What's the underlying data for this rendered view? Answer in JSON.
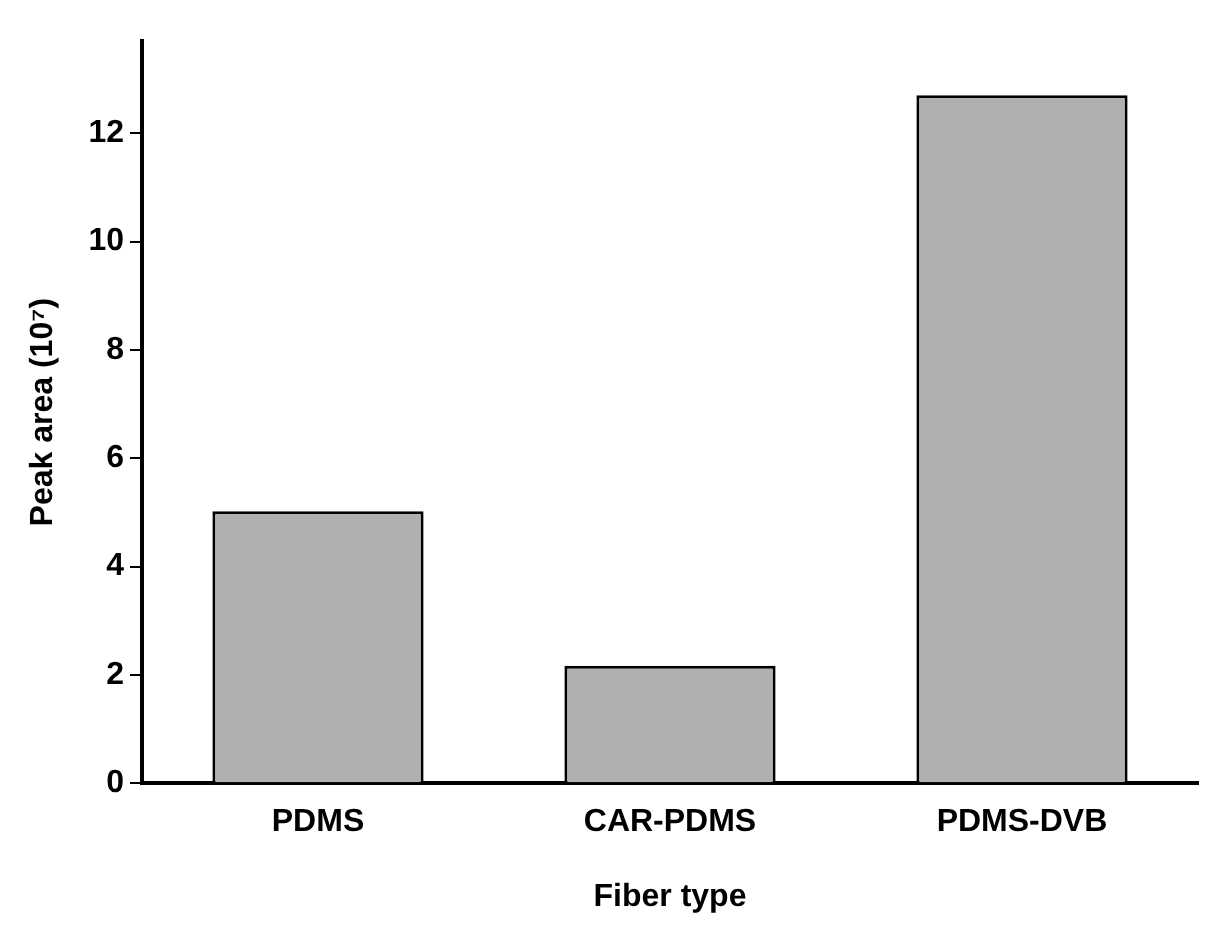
{
  "chart_data": {
    "type": "bar",
    "xlabel": "Fiber type",
    "ylabel": "Peak area (10⁷)",
    "categories": [
      "PDMS",
      "CAR-PDMS",
      "PDMS-DVB"
    ],
    "values": [
      5.02,
      2.17,
      12.7
    ],
    "color": "#b0b0b0",
    "ylim": [
      0,
      13.7
    ],
    "yticks": [
      0,
      2,
      4,
      6,
      8,
      10,
      12
    ],
    "grid": false,
    "legend": false
  }
}
